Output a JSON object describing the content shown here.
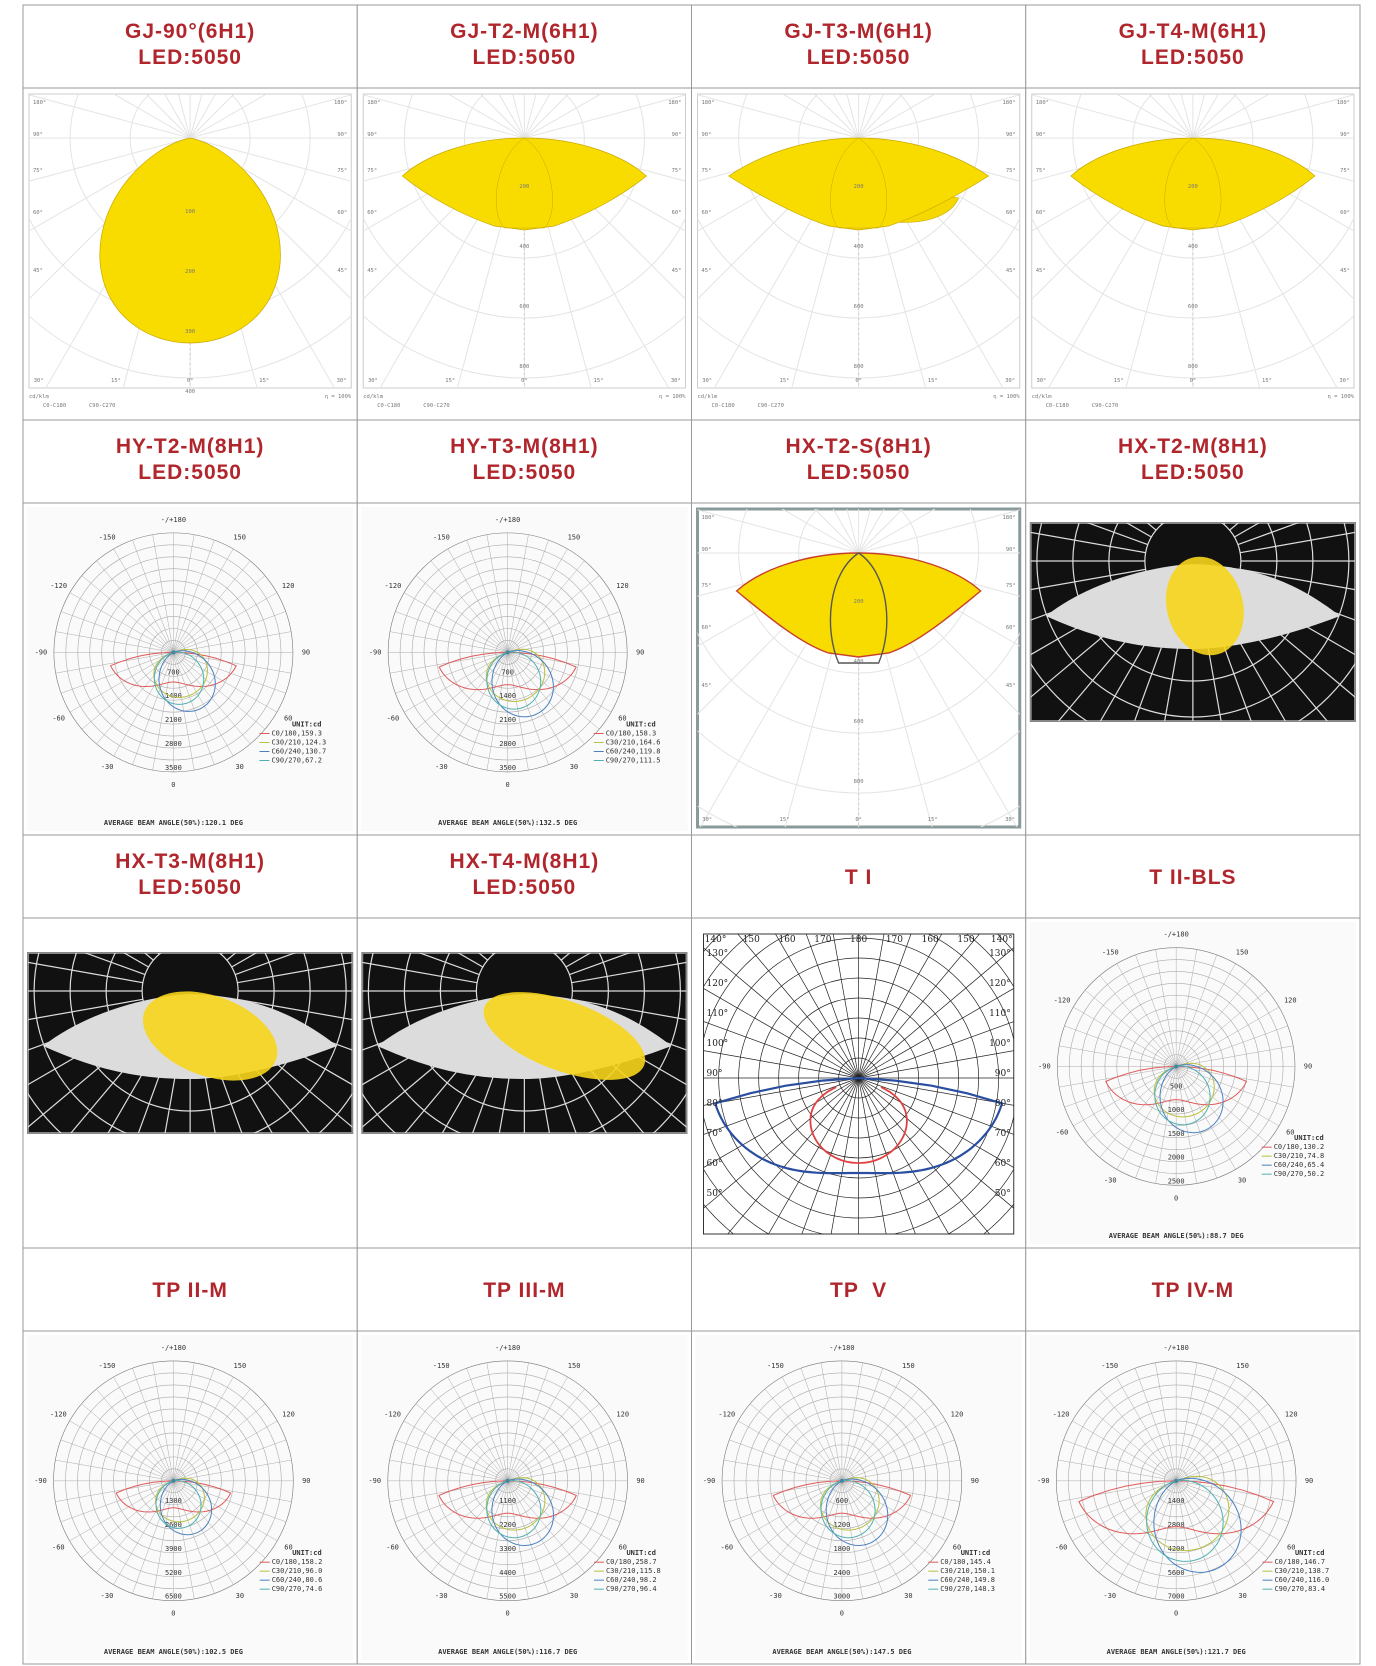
{
  "cells": [
    {
      "title": [
        "GJ-90°(6H1)",
        "LED:5050"
      ],
      "diagram": {
        "type": "polar-yellow",
        "angles": [
          "180°",
          "90°",
          "75°",
          "60°",
          "45°"
        ],
        "bottom": [
          "30°",
          "15°",
          "0°",
          "15°",
          "30°"
        ],
        "rings": [
          "100",
          "200",
          "300",
          "400",
          "500"
        ],
        "footer": [
          "cd/klm",
          "C0-C180",
          "C90-C270",
          "η = 100%"
        ]
      }
    },
    {
      "title": [
        "GJ-T2-M(6H1)",
        "LED:5050"
      ],
      "diagram": {
        "type": "polar-yellow",
        "angles": [
          "180°",
          "90°",
          "75°",
          "60°",
          "45°"
        ],
        "bottom": [
          "30°",
          "15°",
          "0°",
          "15°",
          "30°"
        ],
        "rings": [
          "200",
          "400",
          "600",
          "800",
          "1000"
        ],
        "footer": [
          "cd/klm",
          "C0-C180",
          "C90-C270",
          "η = 100%"
        ]
      }
    },
    {
      "title": [
        "GJ-T3-M(6H1)",
        "LED:5050"
      ],
      "diagram": {
        "type": "polar-yellow",
        "angles": [
          "180°",
          "90°",
          "75°",
          "60°",
          "45°"
        ],
        "bottom": [
          "30°",
          "15°",
          "0°",
          "15°",
          "30°"
        ],
        "rings": [
          "200",
          "400",
          "600",
          "800",
          "1000"
        ],
        "footer": [
          "cd/klm",
          "C0-C180",
          "C90-C270",
          "η = 100%"
        ]
      }
    },
    {
      "title": [
        "GJ-T4-M(6H1)",
        "LED:5050"
      ],
      "diagram": {
        "type": "polar-yellow",
        "angles": [
          "180°",
          "90°",
          "75°",
          "60°",
          "45°"
        ],
        "bottom": [
          "30°",
          "15°",
          "0°",
          "15°",
          "30°"
        ],
        "rings": [
          "200",
          "400",
          "600",
          "800",
          "1000"
        ],
        "footer": [
          "cd/klm",
          "C0-C180",
          "C90-C270",
          "η = 100%"
        ]
      }
    },
    {
      "title": [
        "HY-T2-M(8H1)",
        "LED:5050"
      ],
      "diagram": {
        "type": "polar-cd",
        "angles": [
          "-/+180",
          "-150",
          "150",
          "-120",
          "120",
          "-90",
          "90",
          "-60",
          "60",
          "-30",
          "30",
          "0"
        ],
        "rings": [
          "700",
          "1400",
          "2100",
          "2800",
          "3500"
        ],
        "unit": "UNIT:cd",
        "legend": [
          "C0/180,159.3",
          "C30/210,124.3",
          "C60/240,130.7",
          "C90/270,67.2"
        ],
        "beam": "AVERAGE BEAM ANGLE(50%):120.1 DEG"
      }
    },
    {
      "title": [
        "HY-T3-M(8H1)",
        "LED:5050"
      ],
      "diagram": {
        "type": "polar-cd",
        "angles": [
          "-/+180",
          "-150",
          "150",
          "-120",
          "120",
          "-90",
          "90",
          "-60",
          "60",
          "-30",
          "30",
          "0"
        ],
        "rings": [
          "700",
          "1400",
          "2100",
          "2800",
          "3500"
        ],
        "unit": "UNIT:cd",
        "legend": [
          "C0/180,158.3",
          "C30/210,164.6",
          "C60/240,119.8",
          "C90/270,111.5"
        ],
        "beam": "AVERAGE BEAM ANGLE(50%):132.5 DEG"
      }
    },
    {
      "title": [
        "HX-T2-S(8H1)",
        "LED:5050"
      ],
      "diagram": {
        "type": "polar-yellow",
        "angles": [
          "180°",
          "90°",
          "75°",
          "60°",
          "45°"
        ],
        "bottom": [
          "30°",
          "15°",
          "0°",
          "15°",
          "30°"
        ],
        "rings": [
          "200",
          "400",
          "600",
          "800",
          "1000"
        ],
        "footer": []
      }
    },
    {
      "title": [
        "HX-T2-M(8H1)",
        "LED:5050"
      ],
      "diagram": {
        "type": "dark"
      }
    },
    {
      "title": [
        "HX-T3-M(8H1)",
        "LED:5050"
      ],
      "diagram": {
        "type": "dark"
      }
    },
    {
      "title": [
        "HX-T4-M(8H1)",
        "LED:5050"
      ],
      "diagram": {
        "type": "dark"
      }
    },
    {
      "title": [
        "T I"
      ],
      "diagram": {
        "type": "polar-ti",
        "top": [
          "140°",
          "150",
          "160",
          "170",
          "180",
          "170",
          "160",
          "150",
          "140°"
        ],
        "side": [
          "130°",
          "120°",
          "110°",
          "100°",
          "90°",
          "80°",
          "70°",
          "60°",
          "50°"
        ]
      }
    },
    {
      "title": [
        "T II-BLS"
      ],
      "diagram": {
        "type": "polar-cd",
        "angles": [
          "-/+180",
          "-150",
          "150",
          "-120",
          "120",
          "-90",
          "90",
          "-60",
          "60",
          "-30",
          "30",
          "0"
        ],
        "rings": [
          "500",
          "1000",
          "1500",
          "2000",
          "2500"
        ],
        "unit": "UNIT:cd",
        "legend": [
          "C0/180,130.2",
          "C30/210,74.8",
          "C60/240,65.4",
          "C90/270,50.2"
        ],
        "beam": "AVERAGE BEAM ANGLE(50%):88.7 DEG"
      }
    },
    {
      "title": [
        "TP II-M"
      ],
      "diagram": {
        "type": "polar-cd",
        "angles": [
          "-/+180",
          "-150",
          "150",
          "-120",
          "120",
          "-90",
          "90",
          "-60",
          "60",
          "-30",
          "30",
          "0"
        ],
        "rings": [
          "1300",
          "2600",
          "3900",
          "5200",
          "6500"
        ],
        "unit": "UNIT:cd",
        "legend": [
          "C0/180,158.2",
          "C30/210,96.0",
          "C60/240,80.6",
          "C90/270,74.6"
        ],
        "beam": "AVERAGE BEAM ANGLE(50%):102.5 DEG"
      }
    },
    {
      "title": [
        "TP III-M"
      ],
      "diagram": {
        "type": "polar-cd",
        "angles": [
          "-/+180",
          "-150",
          "150",
          "-120",
          "120",
          "-90",
          "90",
          "-60",
          "60",
          "-30",
          "30",
          "0"
        ],
        "rings": [
          "1100",
          "2200",
          "3300",
          "4400",
          "5500"
        ],
        "unit": "UNIT:cd",
        "legend": [
          "C0/180,258.7",
          "C30/210,115.8",
          "C60/240,98.2",
          "C90/270,96.4"
        ],
        "beam": "AVERAGE BEAM ANGLE(50%):116.7 DEG"
      }
    },
    {
      "title": [
        "TP  V"
      ],
      "diagram": {
        "type": "polar-cd",
        "angles": [
          "-/+180",
          "-150",
          "150",
          "-120",
          "120",
          "-90",
          "90",
          "-60",
          "60",
          "-30",
          "30",
          "0"
        ],
        "rings": [
          "600",
          "1200",
          "1800",
          "2400",
          "3000"
        ],
        "unit": "UNIT:cd",
        "legend": [
          "C0/180,145.4",
          "C30/210,150.1",
          "C60/240,149.8",
          "C90/270,148.3"
        ],
        "beam": "AVERAGE BEAM ANGLE(50%):147.5 DEG"
      }
    },
    {
      "title": [
        "TP IV-M"
      ],
      "diagram": {
        "type": "polar-cd",
        "angles": [
          "-/+180",
          "-150",
          "150",
          "-120",
          "120",
          "-90",
          "90",
          "-60",
          "60",
          "-30",
          "30",
          "0"
        ],
        "rings": [
          "1400",
          "2800",
          "4200",
          "5600",
          "7000"
        ],
        "unit": "UNIT:cd",
        "legend": [
          "C0/180,146.7",
          "C30/210,138.7",
          "C60/240,116.0",
          "C90/270,83.4"
        ],
        "beam": "AVERAGE BEAM ANGLE(50%):121.7 DEG"
      }
    }
  ]
}
